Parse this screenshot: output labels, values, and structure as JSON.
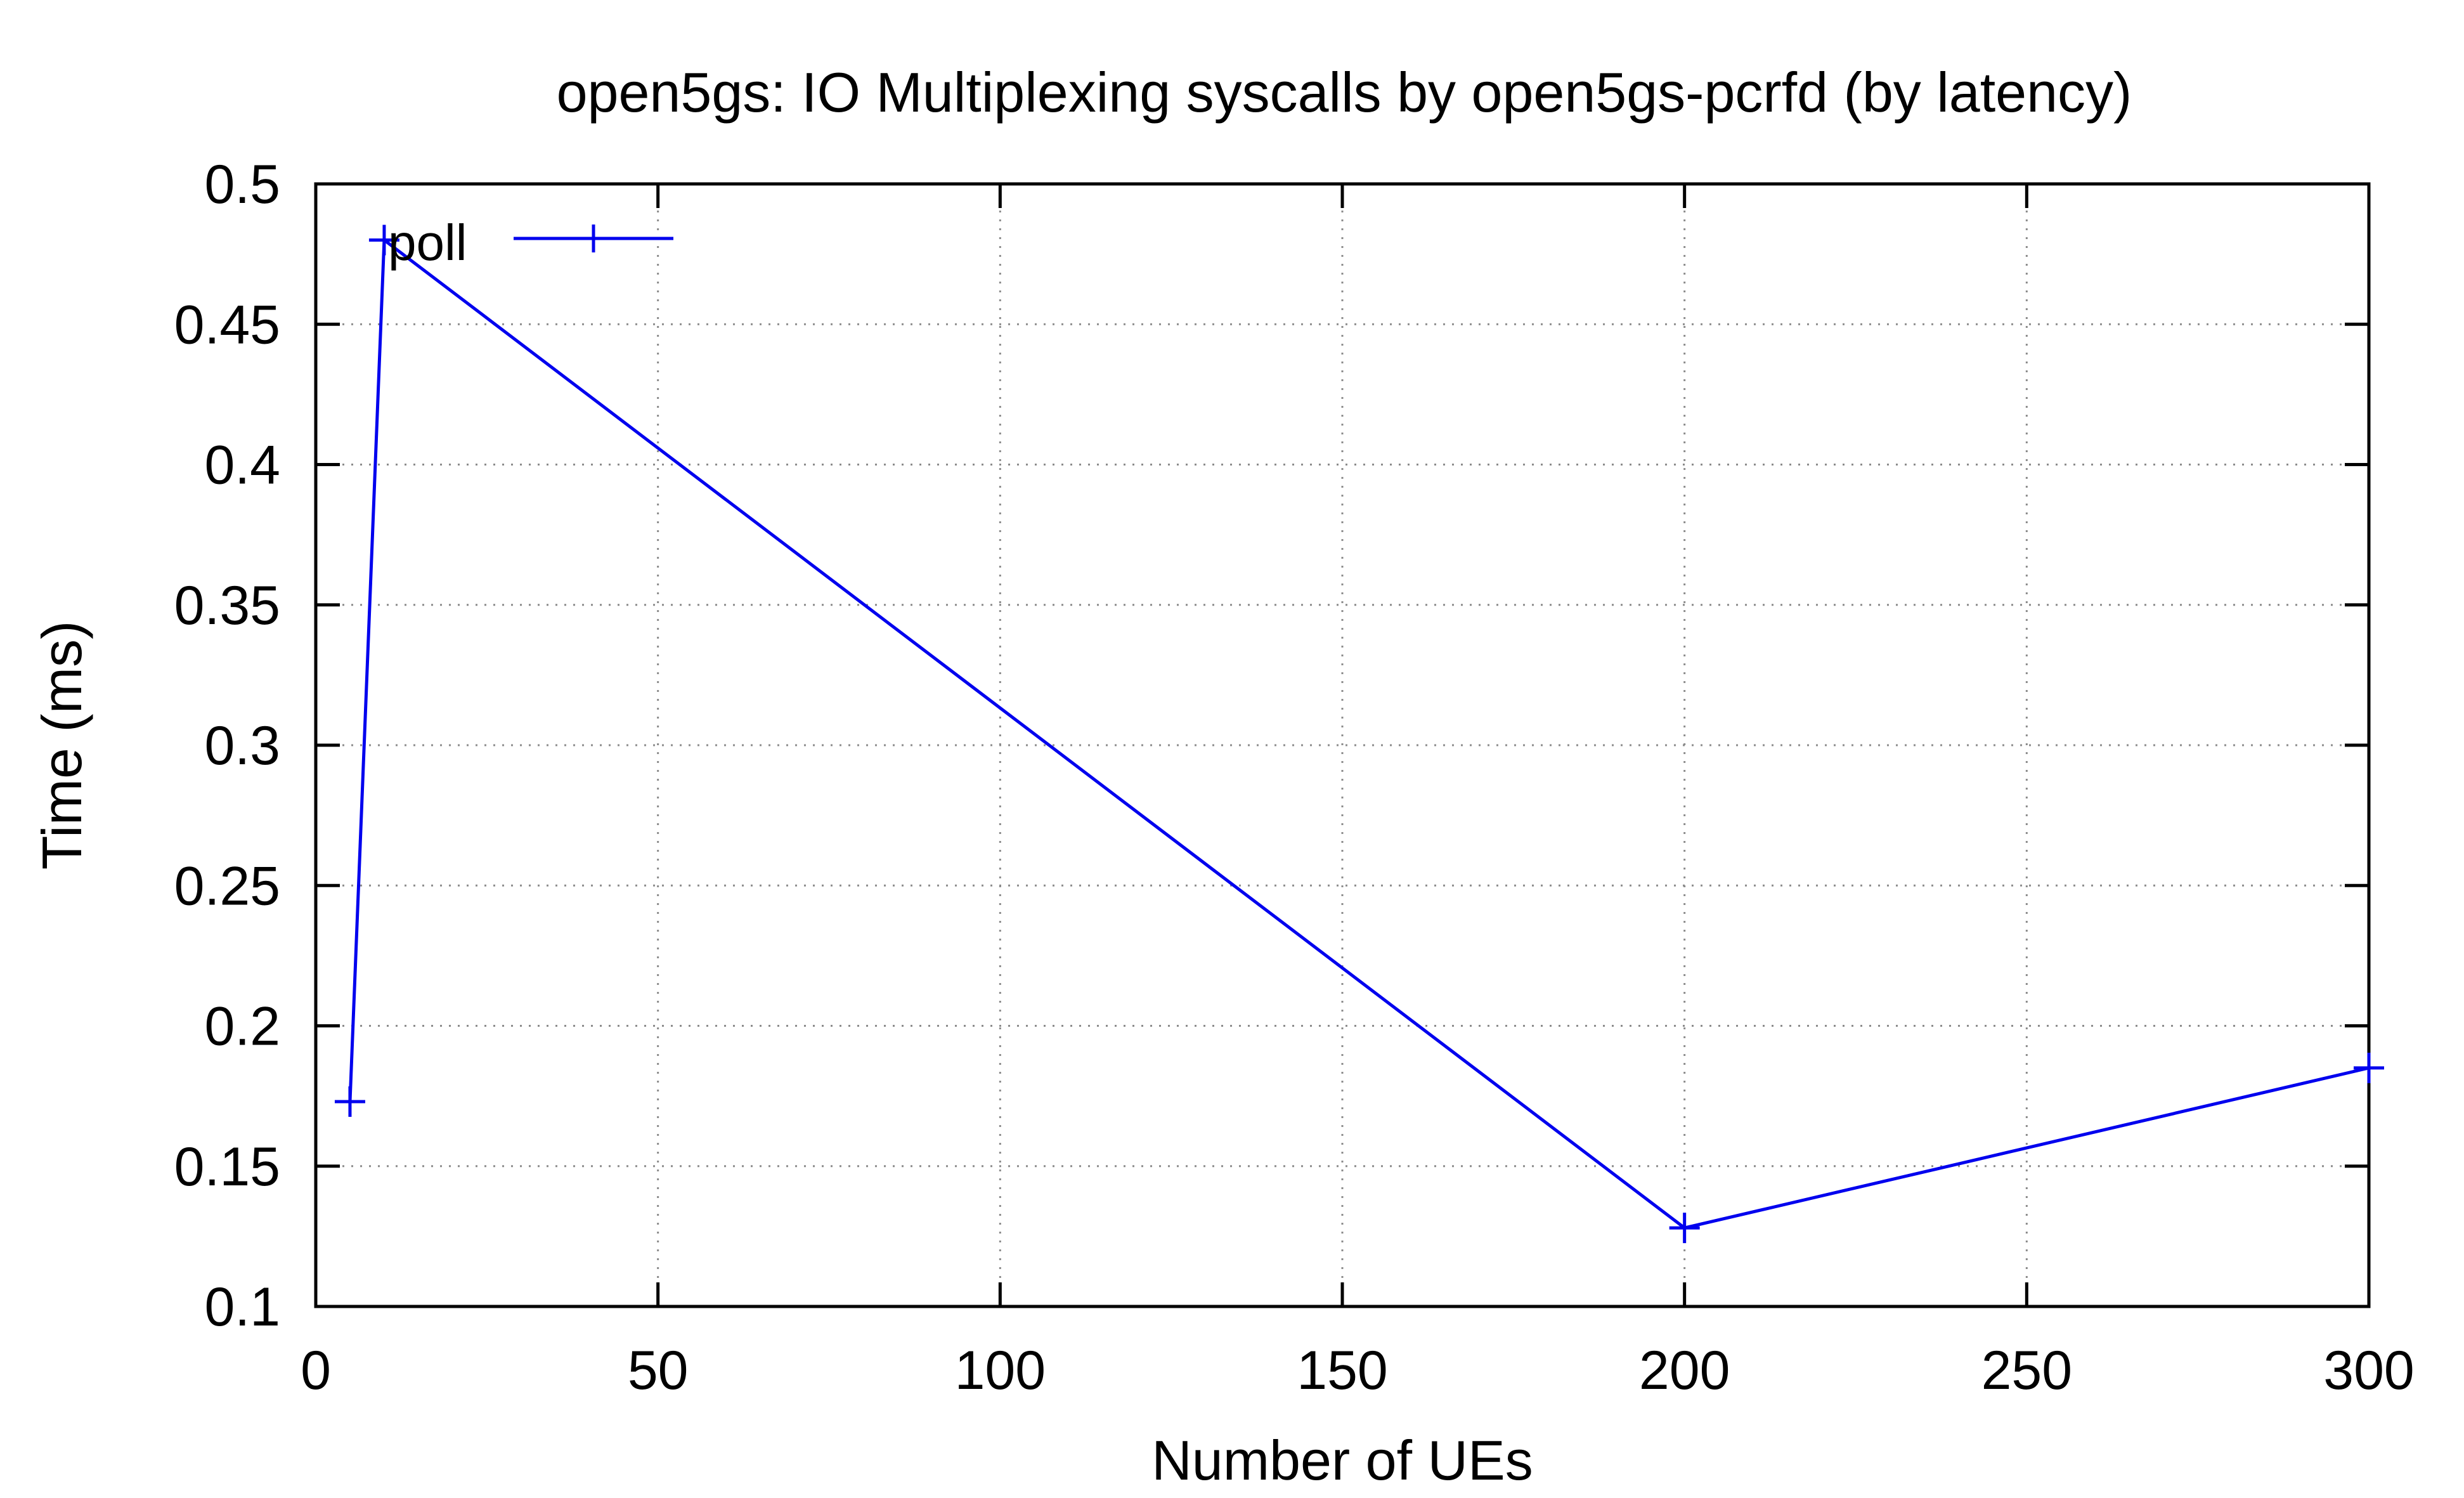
{
  "chart_data": {
    "type": "line",
    "title": "open5gs: IO Multiplexing syscalls by open5gs-pcrfd (by latency)",
    "xlabel": "Number of UEs",
    "ylabel": "Time (ms)",
    "xlim": [
      0,
      300
    ],
    "ylim": [
      0.1,
      0.5
    ],
    "xticks": [
      0,
      50,
      100,
      150,
      200,
      250,
      300
    ],
    "yticks": [
      0.1,
      0.15,
      0.2,
      0.25,
      0.3,
      0.35,
      0.4,
      0.45,
      0.5
    ],
    "xtick_labels": [
      "0",
      "50",
      "100",
      "150",
      "200",
      "250",
      "300"
    ],
    "ytick_labels": [
      "0.1",
      "0.15",
      "0.2",
      "0.25",
      "0.3",
      "0.35",
      "0.4",
      "0.45",
      "0.5"
    ],
    "grid": true,
    "legend_position": "top-left",
    "series": [
      {
        "name": "poll",
        "color": "#0000ee",
        "marker": "plus",
        "x": [
          5,
          10,
          200,
          300
        ],
        "y": [
          0.173,
          0.48,
          0.128,
          0.185
        ]
      }
    ]
  }
}
